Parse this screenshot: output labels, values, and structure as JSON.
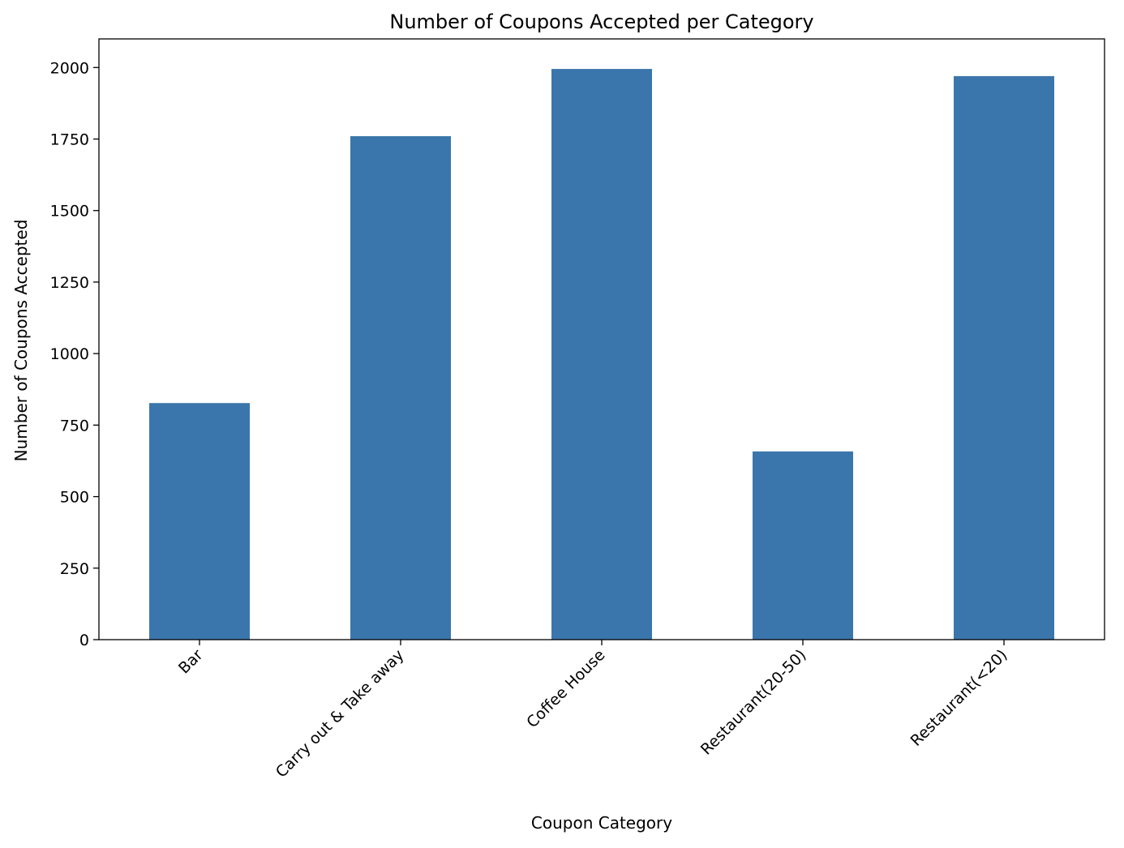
{
  "chart_data": {
    "type": "bar",
    "title": "Number of Coupons Accepted per Category",
    "xlabel": "Coupon Category",
    "ylabel": "Number of Coupons Accepted",
    "categories": [
      "Bar",
      "Carry out & Take away",
      "Coffee House",
      "Restaurant(20-50)",
      "Restaurant(<20)"
    ],
    "values": [
      827,
      1760,
      1995,
      658,
      1970
    ],
    "ylim": [
      0,
      2100
    ],
    "yticks": [
      0,
      250,
      500,
      750,
      1000,
      1250,
      1500,
      1750,
      2000
    ],
    "ytick_labels": [
      "0",
      "250",
      "500",
      "750",
      "1000",
      "1250",
      "1500",
      "1750",
      "2000"
    ],
    "bar_color": "#3a76ab",
    "grid": false,
    "legend": "none"
  }
}
